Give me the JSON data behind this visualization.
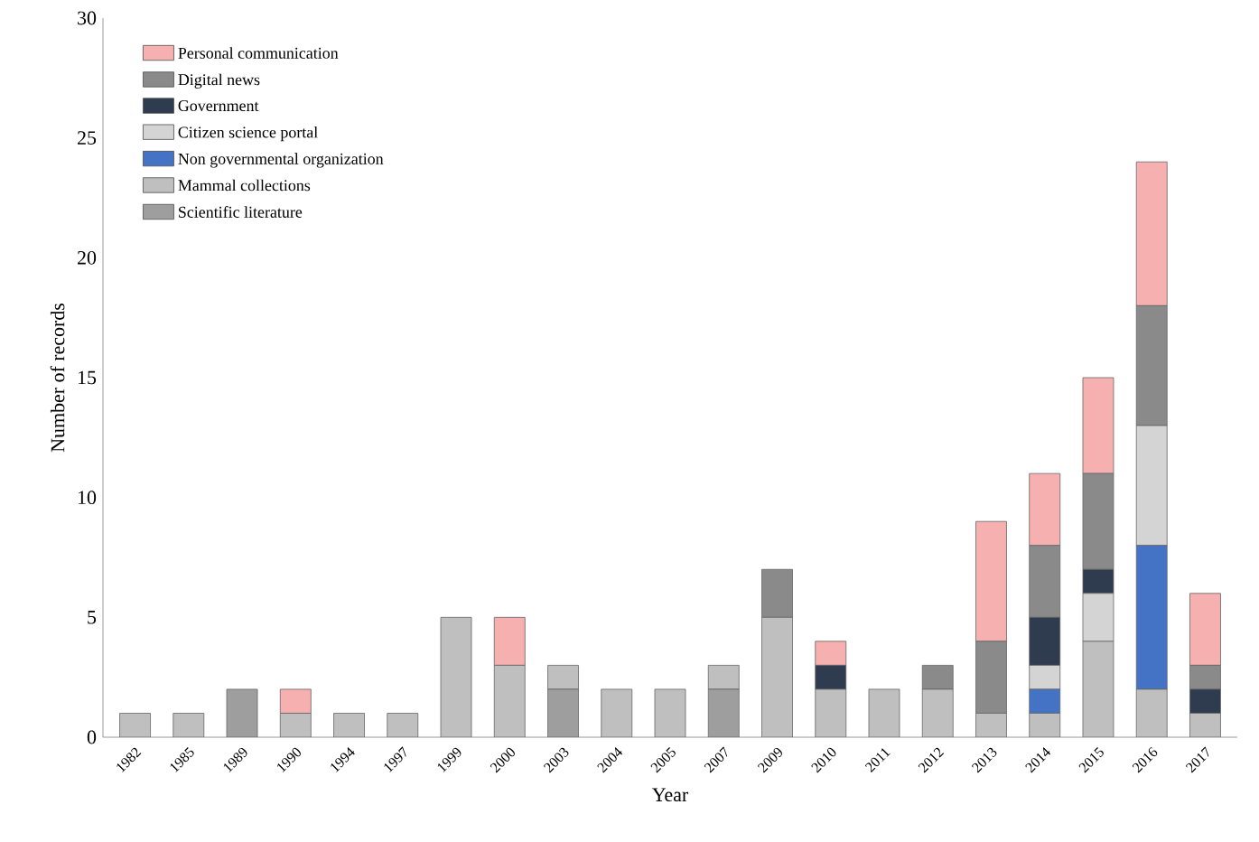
{
  "chart_data": {
    "type": "bar",
    "stacked": true,
    "xlabel": "Year",
    "ylabel": "Number of records",
    "categories": [
      "1982",
      "1985",
      "1989",
      "1990",
      "1994",
      "1997",
      "1999",
      "2000",
      "2003",
      "2004",
      "2005",
      "2007",
      "2009",
      "2010",
      "2011",
      "2012",
      "2013",
      "2014",
      "2015",
      "2016",
      "2017"
    ],
    "series": [
      {
        "name": "Scientific literature",
        "color": "#9e9e9e",
        "values": [
          0,
          0,
          2,
          0,
          0,
          0,
          0,
          0,
          2,
          0,
          0,
          2,
          0,
          0,
          0,
          0,
          0,
          0,
          0,
          0,
          0
        ]
      },
      {
        "name": "Mammal collections",
        "color": "#bfbfbf",
        "values": [
          1,
          1,
          0,
          1,
          1,
          1,
          5,
          3,
          1,
          2,
          2,
          1,
          5,
          2,
          2,
          2,
          1,
          1,
          4,
          2,
          1
        ]
      },
      {
        "name": "Non governmental organization",
        "color": "#4472c4",
        "values": [
          0,
          0,
          0,
          0,
          0,
          0,
          0,
          0,
          0,
          0,
          0,
          0,
          0,
          0,
          0,
          0,
          0,
          1,
          0,
          6,
          0
        ]
      },
      {
        "name": "Citizen science portal",
        "color": "#d4d4d4",
        "values": [
          0,
          0,
          0,
          0,
          0,
          0,
          0,
          0,
          0,
          0,
          0,
          0,
          0,
          0,
          0,
          0,
          0,
          1,
          2,
          5,
          0
        ]
      },
      {
        "name": "Government",
        "color": "#2f3b4f",
        "values": [
          0,
          0,
          0,
          0,
          0,
          0,
          0,
          0,
          0,
          0,
          0,
          0,
          0,
          1,
          0,
          0,
          0,
          2,
          1,
          0,
          1
        ]
      },
      {
        "name": "Digital news",
        "color": "#8a8a8a",
        "values": [
          0,
          0,
          0,
          0,
          0,
          0,
          0,
          0,
          0,
          0,
          0,
          0,
          2,
          0,
          0,
          1,
          3,
          3,
          4,
          5,
          1
        ]
      },
      {
        "name": "Personal communication",
        "color": "#f7b0b0",
        "values": [
          0,
          0,
          0,
          1,
          0,
          0,
          0,
          2,
          0,
          0,
          0,
          0,
          0,
          1,
          0,
          0,
          5,
          3,
          4,
          6,
          3
        ]
      }
    ],
    "ylim": [
      0,
      30
    ],
    "yticks": [
      0,
      5,
      10,
      15,
      20,
      25,
      30
    ],
    "legend": "top left",
    "grid": false
  }
}
